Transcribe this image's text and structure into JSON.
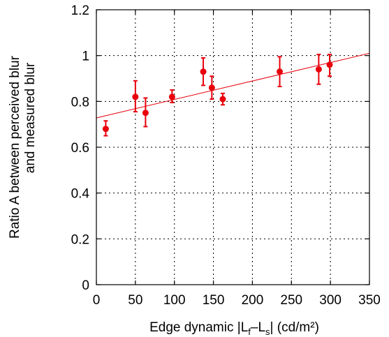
{
  "chart_data": {
    "type": "scatter",
    "title": "",
    "xlabel": {
      "prefix": "Edge dynamic |L",
      "sub1": "f",
      "mid": "–L",
      "sub2": "s",
      "suffix": "| (cd/m²)"
    },
    "ylabel_lines": [
      "Ratio A between perceived blur",
      "and measured blur"
    ],
    "xlim": [
      0,
      350
    ],
    "ylim": [
      0,
      1.2
    ],
    "xticks": [
      0,
      50,
      100,
      150,
      200,
      250,
      300,
      350
    ],
    "yticks": [
      0,
      0.2,
      0.4,
      0.6,
      0.8,
      1,
      1.2
    ],
    "ytick_labels": [
      "0",
      "0.2",
      "0.4",
      "0.6",
      "0.8",
      "1",
      "1.2"
    ],
    "grid": true,
    "marker_color": "#e8000b",
    "points": [
      {
        "x": 12,
        "y": 0.68,
        "lo": 0.65,
        "hi": 0.715
      },
      {
        "x": 50,
        "y": 0.82,
        "lo": 0.755,
        "hi": 0.89
      },
      {
        "x": 63,
        "y": 0.75,
        "lo": 0.69,
        "hi": 0.815
      },
      {
        "x": 97,
        "y": 0.82,
        "lo": 0.795,
        "hi": 0.85
      },
      {
        "x": 137,
        "y": 0.93,
        "lo": 0.87,
        "hi": 0.99
      },
      {
        "x": 148,
        "y": 0.86,
        "lo": 0.81,
        "hi": 0.91
      },
      {
        "x": 162,
        "y": 0.81,
        "lo": 0.785,
        "hi": 0.835
      },
      {
        "x": 235,
        "y": 0.93,
        "lo": 0.865,
        "hi": 0.995
      },
      {
        "x": 285,
        "y": 0.94,
        "lo": 0.875,
        "hi": 1.005
      },
      {
        "x": 299,
        "y": 0.96,
        "lo": 0.91,
        "hi": 1.005
      }
    ],
    "fit_line": {
      "x": [
        0,
        350
      ],
      "y": [
        0.728,
        1.01
      ]
    }
  }
}
